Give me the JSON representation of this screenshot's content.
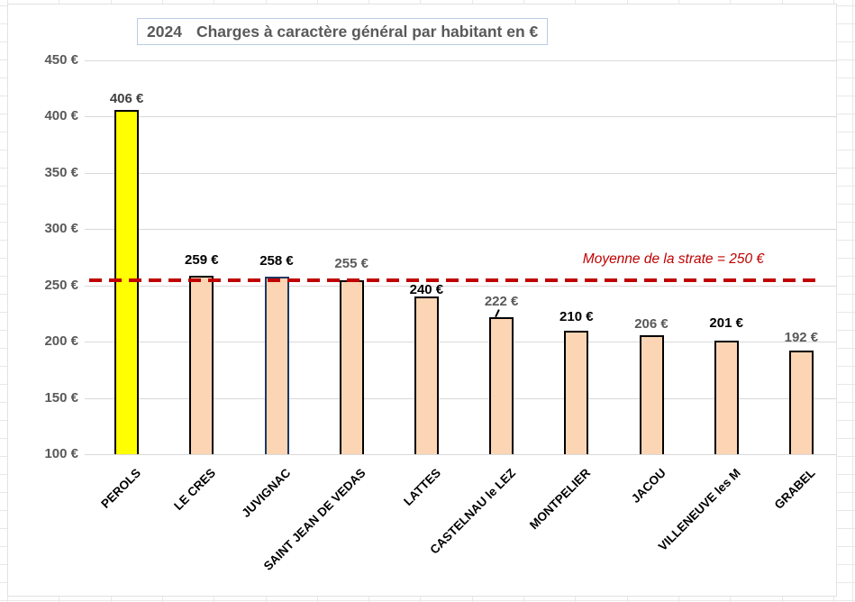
{
  "app": {
    "kind": "spreadsheet embedded chart"
  },
  "title": {
    "year": "2024",
    "text": "Charges à caractère général par habitant en €"
  },
  "reference_annotation": "Moyenne de la strate = 250 €",
  "colors": {
    "accent_bar": "#ffff00",
    "default_bar": "#fcd5b4",
    "bar_border": "#000000",
    "juvignac_border": "#1f3864",
    "reference_red": "#c00000",
    "axis_text": "#595959",
    "gridline": "#d9d9d9",
    "title_border": "#b9cde5"
  },
  "chart_data": {
    "type": "bar",
    "title": "2024  Charges à caractère général par habitant en €",
    "categories": [
      "PEROLS",
      "LE CRES",
      "JUVIGNAC",
      "SAINT JEAN DE VEDAS",
      "LATTES",
      "CASTELNAU le LEZ",
      "MONTPELIER",
      "JACOU",
      "VILLENEUVE les M",
      "GRABEL"
    ],
    "values": [
      406,
      259,
      258,
      255,
      240,
      222,
      210,
      206,
      201,
      192
    ],
    "value_labels": [
      "406 €",
      "259 €",
      "258 €",
      "255 €",
      "240 €",
      "222 €",
      "210 €",
      "206 €",
      "201 €",
      "192 €"
    ],
    "label_colors": [
      "#404040",
      "#000000",
      "#000000",
      "#595959",
      "#000000",
      "#595959",
      "#000000",
      "#595959",
      "#000000",
      "#595959"
    ],
    "bar_fills": [
      "#ffff00",
      "#fcd5b4",
      "#fcd5b4",
      "#fcd5b4",
      "#fcd5b4",
      "#fcd5b4",
      "#fcd5b4",
      "#fcd5b4",
      "#fcd5b4",
      "#fcd5b4"
    ],
    "bar_borders": [
      "#000000",
      "#000000",
      "#1f3864",
      "#000000",
      "#000000",
      "#000000",
      "#000000",
      "#000000",
      "#000000",
      "#000000"
    ],
    "reference_line": {
      "value": 250,
      "label": "Moyenne de la strate = 250 €",
      "color": "#c00000",
      "style": "dashed"
    },
    "ylim": [
      100,
      450
    ],
    "ytick_step": 50,
    "ytick_labels": [
      "100 €",
      "150 €",
      "200 €",
      "250 €",
      "300 €",
      "350 €",
      "400 €",
      "450 €"
    ],
    "ytick_suffix": " €",
    "xlabel": "",
    "ylabel": "",
    "grid": true,
    "legend": false
  }
}
